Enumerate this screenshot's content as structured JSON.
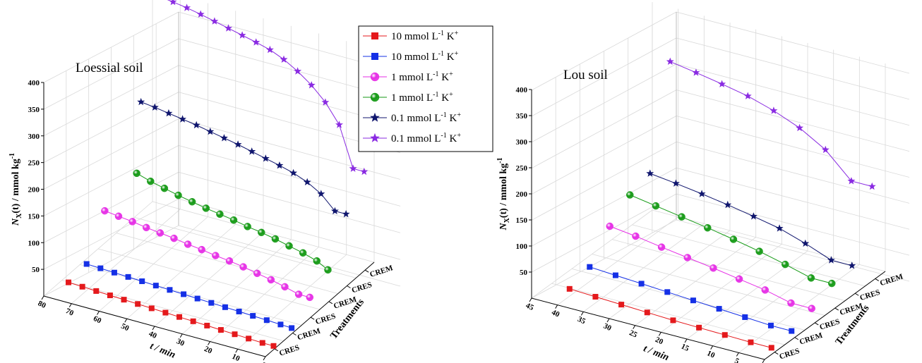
{
  "legend": {
    "items": [
      {
        "series_index": 0,
        "label": "10 mmol L",
        "sup": "-1",
        "ion": " K",
        "ion_sup": "+"
      },
      {
        "series_index": 1,
        "label": "10 mmol L",
        "sup": "-1",
        "ion": " K",
        "ion_sup": "+"
      },
      {
        "series_index": 2,
        "label": "1 mmol L",
        "sup": "-1",
        "ion": " K",
        "ion_sup": "+"
      },
      {
        "series_index": 3,
        "label": "1 mmol L",
        "sup": "-1",
        "ion": " K",
        "ion_sup": "+"
      },
      {
        "series_index": 4,
        "label": "0.1 mmol L",
        "sup": "-1",
        "ion": " K",
        "ion_sup": "+"
      },
      {
        "series_index": 5,
        "label": "0.1 mmol L",
        "sup": "-1",
        "ion": " K",
        "ion_sup": "+"
      }
    ]
  },
  "series_styles": [
    {
      "color": "#e4191c",
      "marker": "square"
    },
    {
      "color": "#1530e6",
      "marker": "square"
    },
    {
      "color": "#e62ee6",
      "marker": "sphere"
    },
    {
      "color": "#159a15",
      "marker": "sphere"
    },
    {
      "color": "#10166e",
      "marker": "star"
    },
    {
      "color": "#8a2be2",
      "marker": "star"
    }
  ],
  "chart_data": [
    {
      "type": "line3d",
      "panel": "left",
      "annotation": "Loessial soil",
      "xlabel": "t / min",
      "ylabel": "N",
      "ylabel_sub": "X",
      "ylabel_rest": "(t) / mmol kg",
      "ylabel_sup": "-1",
      "zlabel": "Treatments",
      "xlim": [
        0,
        80
      ],
      "ylim": [
        0,
        400
      ],
      "xticks": [
        0,
        10,
        20,
        30,
        40,
        50,
        60,
        70,
        80
      ],
      "yticks": [
        50,
        100,
        150,
        200,
        250,
        300,
        350,
        400
      ],
      "treatments": [
        "CRES",
        "CREM",
        "CRES",
        "CREM",
        "CRES",
        "CREM"
      ],
      "series": [
        {
          "treatment": 5,
          "x": [
            75,
            70,
            65,
            60,
            55,
            50,
            45,
            40,
            35,
            30,
            25,
            20,
            15,
            10,
            5,
            1
          ],
          "y": [
            403,
            400,
            396,
            391,
            385,
            379,
            373,
            367,
            360,
            349,
            334,
            315,
            290,
            255,
            180,
            180
          ]
        },
        {
          "treatment": 4,
          "x": [
            75,
            70,
            65,
            60,
            55,
            50,
            45,
            40,
            35,
            30,
            25,
            20,
            15,
            10,
            5,
            1
          ],
          "y": [
            235,
            232,
            228,
            224,
            220,
            215,
            210,
            205,
            199,
            193,
            187,
            180,
            170,
            155,
            130,
            130
          ]
        },
        {
          "treatment": 3,
          "x": [
            70,
            65,
            60,
            55,
            50,
            45,
            40,
            35,
            30,
            25,
            20,
            15,
            10,
            5,
            1
          ],
          "y": [
            138,
            130,
            124,
            118,
            113,
            108,
            104,
            100,
            95,
            91,
            86,
            80,
            74,
            66,
            55
          ]
        },
        {
          "treatment": 2,
          "x": [
            75,
            70,
            65,
            60,
            55,
            50,
            45,
            40,
            35,
            30,
            25,
            20,
            15,
            10,
            5,
            1
          ],
          "y": [
            90,
            87,
            84,
            80,
            77,
            74,
            70,
            67,
            63,
            60,
            56,
            51,
            46,
            40,
            33,
            33
          ]
        },
        {
          "treatment": 1,
          "x": [
            75,
            70,
            65,
            60,
            55,
            50,
            45,
            40,
            35,
            30,
            25,
            20,
            15,
            10,
            5,
            1
          ],
          "y": [
            20,
            19,
            18,
            17,
            16,
            15,
            14,
            13,
            12,
            11,
            10,
            9,
            8,
            7,
            6,
            5
          ]
        },
        {
          "treatment": 0,
          "x": [
            75,
            70,
            65,
            60,
            55,
            50,
            45,
            40,
            35,
            30,
            25,
            20,
            15,
            10,
            5,
            1
          ],
          "y": [
            15,
            14,
            13,
            12,
            11,
            10,
            9,
            8,
            7,
            6,
            5,
            4,
            3,
            2,
            1,
            1
          ]
        }
      ]
    },
    {
      "type": "line3d",
      "panel": "right",
      "annotation": "Lou soil",
      "xlabel": "t / min",
      "ylabel": "N",
      "ylabel_sub": "X",
      "ylabel_rest": "(t) / mmol kg",
      "ylabel_sup": "-1",
      "zlabel": "Treatments",
      "xlim": [
        0,
        45
      ],
      "ylim": [
        0,
        400
      ],
      "xticks": [
        0,
        5,
        10,
        15,
        20,
        25,
        30,
        35,
        40,
        45
      ],
      "yticks": [
        50,
        100,
        150,
        200,
        250,
        300,
        350,
        400
      ],
      "treatments": [
        "CRES",
        "CREM",
        "CRES",
        "CREM",
        "CRES",
        "CREM"
      ],
      "series": [
        {
          "treatment": 5,
          "x": [
            40,
            35,
            30,
            25,
            20,
            15,
            10,
            5,
            1
          ],
          "y": [
            310,
            302,
            293,
            283,
            268,
            248,
            219,
            172,
            172
          ]
        },
        {
          "treatment": 4,
          "x": [
            40,
            35,
            30,
            25,
            20,
            15,
            10,
            5,
            1
          ],
          "y": [
            123,
            117,
            110,
            102,
            93,
            83,
            67,
            48,
            48
          ]
        },
        {
          "treatment": 3,
          "x": [
            40,
            35,
            30,
            25,
            20,
            15,
            10,
            5,
            1
          ],
          "y": [
            110,
            102,
            94,
            86,
            77,
            67,
            55,
            42,
            42
          ]
        },
        {
          "treatment": 2,
          "x": [
            40,
            35,
            30,
            25,
            20,
            15,
            10,
            5,
            1
          ],
          "y": [
            78,
            72,
            64,
            57,
            50,
            42,
            34,
            22,
            22
          ]
        },
        {
          "treatment": 1,
          "x": [
            40,
            35,
            30,
            25,
            20,
            15,
            10,
            5,
            1
          ],
          "y": [
            28,
            25,
            22,
            19,
            16,
            13,
            10,
            7,
            7
          ]
        },
        {
          "treatment": 0,
          "x": [
            40,
            35,
            30,
            25,
            20,
            15,
            10,
            5,
            1
          ],
          "y": [
            14,
            12,
            10,
            8,
            6,
            5,
            4,
            3,
            3
          ]
        }
      ]
    }
  ]
}
